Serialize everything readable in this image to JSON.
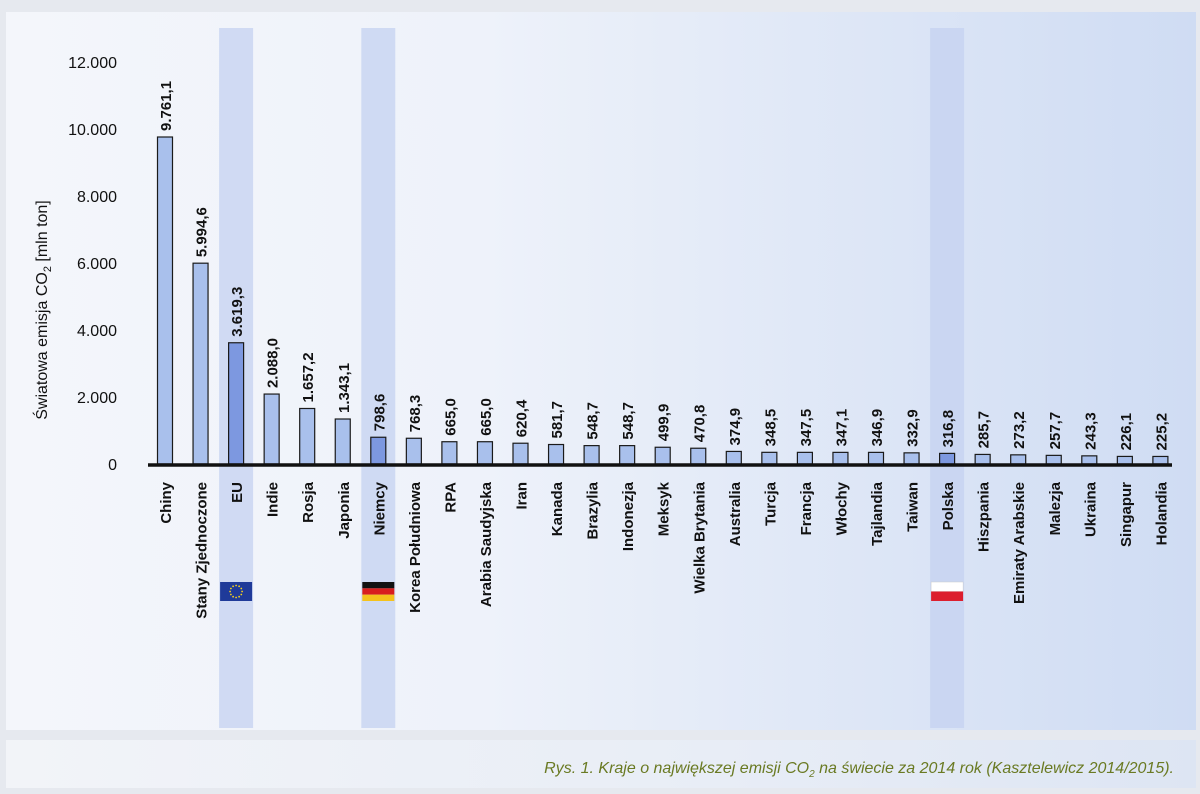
{
  "chart_data": {
    "type": "bar",
    "ylabel": "Światowa emisja CO",
    "ylabel_sub": "2",
    "ylabel_suffix": " [mln ton]",
    "ylim": [
      0,
      12000
    ],
    "yticks": [
      0,
      2000,
      4000,
      6000,
      8000,
      10000,
      12000
    ],
    "ytick_labels": [
      "0",
      "2.000",
      "4.000",
      "6.000",
      "8.000",
      "10.000",
      "12.000"
    ],
    "grid": false,
    "categories": [
      "Chiny",
      "Stany Zjednoczone",
      "EU",
      "Indie",
      "Rosja",
      "Japonia",
      "Niemcy",
      "Korea Południowa",
      "RPA",
      "Arabia Saudyjska",
      "Iran",
      "Kanada",
      "Brazylia",
      "Indonezja",
      "Meksyk",
      "Wielka Brytania",
      "Australia",
      "Turcja",
      "Francja",
      "Włochy",
      "Tajlandia",
      "Taiwan",
      "Polska",
      "Hiszpania",
      "Emiraty Arabskie",
      "Malezja",
      "Ukraina",
      "Singapur",
      "Holandia"
    ],
    "values": [
      9761.1,
      5994.6,
      3619.3,
      2088.0,
      1657.2,
      1343.1,
      798.6,
      768.3,
      665.0,
      665.0,
      620.4,
      581.7,
      548.7,
      548.7,
      499.9,
      470.8,
      374.9,
      348.5,
      347.5,
      347.1,
      346.9,
      332.9,
      316.8,
      285.7,
      273.2,
      257.7,
      243.3,
      226.1,
      225.2
    ],
    "value_labels": [
      "9.761,1",
      "5.994,6",
      "3.619,3",
      "2.088,0",
      "1.657,2",
      "1.343,1",
      "798,6",
      "768,3",
      "665,0",
      "665,0",
      "620,4",
      "581,7",
      "548,7",
      "548,7",
      "499,9",
      "470,8",
      "374,9",
      "348,5",
      "347,5",
      "347,1",
      "346,9",
      "332,9",
      "316,8",
      "285,7",
      "273,2",
      "257,7",
      "243,3",
      "226,1",
      "225,2"
    ],
    "highlighted": [
      "EU",
      "Niemcy",
      "Polska"
    ],
    "flags": [
      {
        "category": "EU",
        "flag": "eu-flag-icon"
      },
      {
        "category": "Niemcy",
        "flag": "germany-flag-icon"
      },
      {
        "category": "Polska",
        "flag": "poland-flag-icon"
      }
    ]
  },
  "colors": {
    "bar_fill": "#a9c0ec",
    "bar_fill_highlight": "#7d98e0",
    "bar_stroke": "#1a1a1a",
    "highlight_band": "#c4d2f0",
    "caption": "#6a7a23"
  },
  "caption": {
    "prefix": "Rys. 1. Kraje o największej emisji CO",
    "sub": "2",
    "suffix": "na świecie za 2014 rok (Kasztelewicz 2014/2015)."
  }
}
